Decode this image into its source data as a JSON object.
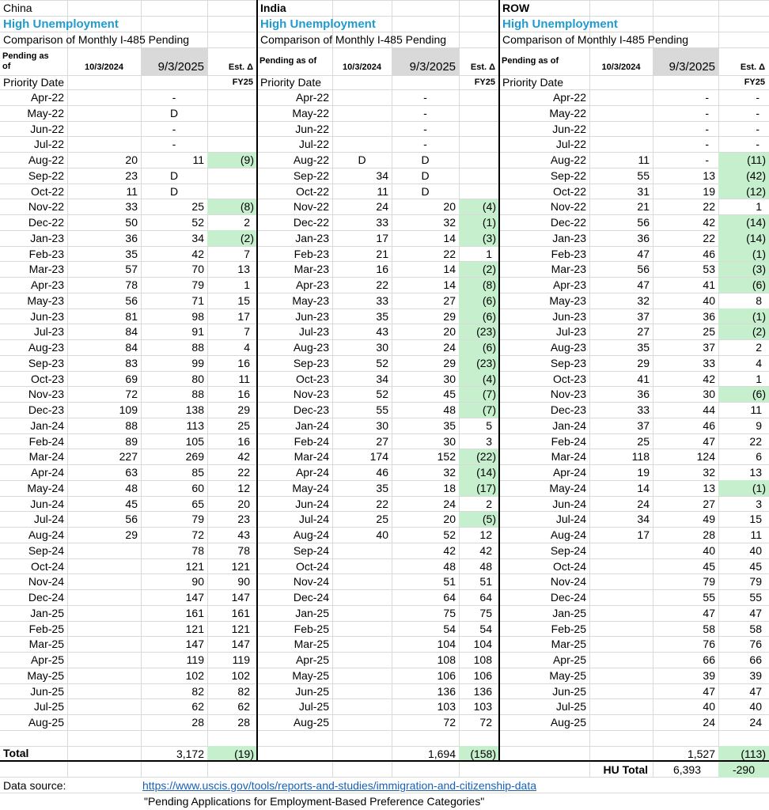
{
  "panels": [
    {
      "name": "China",
      "subtitle": "High Unemployment",
      "description": "Comparison of Monthly I-485 Pending",
      "columns": [
        "Pending as of",
        "10/3/2024",
        "9/3/2025",
        "Est. Δ"
      ],
      "row_header": "Priority Date",
      "fy": "FY25",
      "rows": [
        [
          "Apr-22",
          null,
          "-",
          null
        ],
        [
          "May-22",
          null,
          "D",
          null
        ],
        [
          "Jun-22",
          null,
          "-",
          null
        ],
        [
          "Jul-22",
          null,
          "-",
          null
        ],
        [
          "Aug-22",
          "20",
          "11",
          "(9)"
        ],
        [
          "Sep-22",
          "23",
          "D",
          null
        ],
        [
          "Oct-22",
          "11",
          "D",
          null
        ],
        [
          "Nov-22",
          "33",
          "25",
          "(8)"
        ],
        [
          "Dec-22",
          "50",
          "52",
          "2"
        ],
        [
          "Jan-23",
          "36",
          "34",
          "(2)"
        ],
        [
          "Feb-23",
          "35",
          "42",
          "7"
        ],
        [
          "Mar-23",
          "57",
          "70",
          "13"
        ],
        [
          "Apr-23",
          "78",
          "79",
          "1"
        ],
        [
          "May-23",
          "56",
          "71",
          "15"
        ],
        [
          "Jun-23",
          "81",
          "98",
          "17"
        ],
        [
          "Jul-23",
          "84",
          "91",
          "7"
        ],
        [
          "Aug-23",
          "84",
          "88",
          "4"
        ],
        [
          "Sep-23",
          "83",
          "99",
          "16"
        ],
        [
          "Oct-23",
          "69",
          "80",
          "11"
        ],
        [
          "Nov-23",
          "72",
          "88",
          "16"
        ],
        [
          "Dec-23",
          "109",
          "138",
          "29"
        ],
        [
          "Jan-24",
          "88",
          "113",
          "25"
        ],
        [
          "Feb-24",
          "89",
          "105",
          "16"
        ],
        [
          "Mar-24",
          "227",
          "269",
          "42"
        ],
        [
          "Apr-24",
          "63",
          "85",
          "22"
        ],
        [
          "May-24",
          "48",
          "60",
          "12"
        ],
        [
          "Jun-24",
          "45",
          "65",
          "20"
        ],
        [
          "Jul-24",
          "56",
          "79",
          "23"
        ],
        [
          "Aug-24",
          "29",
          "72",
          "43"
        ],
        [
          "Sep-24",
          null,
          "78",
          "78"
        ],
        [
          "Oct-24",
          null,
          "121",
          "121"
        ],
        [
          "Nov-24",
          null,
          "90",
          "90"
        ],
        [
          "Dec-24",
          null,
          "147",
          "147"
        ],
        [
          "Jan-25",
          null,
          "161",
          "161"
        ],
        [
          "Feb-25",
          null,
          "121",
          "121"
        ],
        [
          "Mar-25",
          null,
          "147",
          "147"
        ],
        [
          "Apr-25",
          null,
          "119",
          "119"
        ],
        [
          "May-25",
          null,
          "102",
          "102"
        ],
        [
          "Jun-25",
          null,
          "82",
          "82"
        ],
        [
          "Jul-25",
          null,
          "62",
          "62"
        ],
        [
          "Aug-25",
          null,
          "28",
          "28"
        ]
      ],
      "total": {
        "label": "Total",
        "pending": "3,172",
        "change": "(19)"
      }
    },
    {
      "name": "India",
      "subtitle": "High Unemployment",
      "description": "Comparison of Monthly I-485 Pending",
      "columns": [
        "Pending as of",
        "10/3/2024",
        "9/3/2025",
        "Est. Δ"
      ],
      "row_header": "Priority Date",
      "fy": "FY25",
      "rows": [
        [
          "Apr-22",
          null,
          "-",
          null
        ],
        [
          "May-22",
          null,
          "-",
          null
        ],
        [
          "Jun-22",
          null,
          "-",
          null
        ],
        [
          "Jul-22",
          null,
          "-",
          null
        ],
        [
          "Aug-22",
          "D",
          "D",
          null
        ],
        [
          "Sep-22",
          "34",
          "D",
          null
        ],
        [
          "Oct-22",
          "11",
          "D",
          null
        ],
        [
          "Nov-22",
          "24",
          "20",
          "(4)"
        ],
        [
          "Dec-22",
          "33",
          "32",
          "(1)"
        ],
        [
          "Jan-23",
          "17",
          "14",
          "(3)"
        ],
        [
          "Feb-23",
          "21",
          "22",
          "1"
        ],
        [
          "Mar-23",
          "16",
          "14",
          "(2)"
        ],
        [
          "Apr-23",
          "22",
          "14",
          "(8)"
        ],
        [
          "May-23",
          "33",
          "27",
          "(6)"
        ],
        [
          "Jun-23",
          "35",
          "29",
          "(6)"
        ],
        [
          "Jul-23",
          "43",
          "20",
          "(23)"
        ],
        [
          "Aug-23",
          "30",
          "24",
          "(6)"
        ],
        [
          "Sep-23",
          "52",
          "29",
          "(23)"
        ],
        [
          "Oct-23",
          "34",
          "30",
          "(4)"
        ],
        [
          "Nov-23",
          "52",
          "45",
          "(7)"
        ],
        [
          "Dec-23",
          "55",
          "48",
          "(7)"
        ],
        [
          "Jan-24",
          "30",
          "35",
          "5"
        ],
        [
          "Feb-24",
          "27",
          "30",
          "3"
        ],
        [
          "Mar-24",
          "174",
          "152",
          "(22)"
        ],
        [
          "Apr-24",
          "46",
          "32",
          "(14)"
        ],
        [
          "May-24",
          "35",
          "18",
          "(17)"
        ],
        [
          "Jun-24",
          "22",
          "24",
          "2"
        ],
        [
          "Jul-24",
          "25",
          "20",
          "(5)"
        ],
        [
          "Aug-24",
          "40",
          "52",
          "12"
        ],
        [
          "Sep-24",
          null,
          "42",
          "42"
        ],
        [
          "Oct-24",
          null,
          "48",
          "48"
        ],
        [
          "Nov-24",
          null,
          "51",
          "51"
        ],
        [
          "Dec-24",
          null,
          "64",
          "64"
        ],
        [
          "Jan-25",
          null,
          "75",
          "75"
        ],
        [
          "Feb-25",
          null,
          "54",
          "54"
        ],
        [
          "Mar-25",
          null,
          "104",
          "104"
        ],
        [
          "Apr-25",
          null,
          "108",
          "108"
        ],
        [
          "May-25",
          null,
          "106",
          "106"
        ],
        [
          "Jun-25",
          null,
          "136",
          "136"
        ],
        [
          "Jul-25",
          null,
          "103",
          "103"
        ],
        [
          "Aug-25",
          null,
          "72",
          "72"
        ]
      ],
      "total": {
        "pending": "1,694",
        "change": "(158)"
      }
    },
    {
      "name": "ROW",
      "subtitle": "High Unemployment",
      "description": "Comparison of Monthly I-485 Pending",
      "columns": [
        "Pending as of",
        "10/3/2024",
        "9/3/2025",
        "Est. Δ"
      ],
      "row_header": "Priority Date",
      "fy": "FY25",
      "rows": [
        [
          "Apr-22",
          null,
          "-",
          "-"
        ],
        [
          "May-22",
          null,
          "-",
          "-"
        ],
        [
          "Jun-22",
          null,
          "-",
          "-"
        ],
        [
          "Jul-22",
          null,
          "-",
          "-"
        ],
        [
          "Aug-22",
          "11",
          "-",
          "(11)"
        ],
        [
          "Sep-22",
          "55",
          "13",
          "(42)"
        ],
        [
          "Oct-22",
          "31",
          "19",
          "(12)"
        ],
        [
          "Nov-22",
          "21",
          "22",
          "1"
        ],
        [
          "Dec-22",
          "56",
          "42",
          "(14)"
        ],
        [
          "Jan-23",
          "36",
          "22",
          "(14)"
        ],
        [
          "Feb-23",
          "47",
          "46",
          "(1)"
        ],
        [
          "Mar-23",
          "56",
          "53",
          "(3)"
        ],
        [
          "Apr-23",
          "47",
          "41",
          "(6)"
        ],
        [
          "May-23",
          "32",
          "40",
          "8"
        ],
        [
          "Jun-23",
          "37",
          "36",
          "(1)"
        ],
        [
          "Jul-23",
          "27",
          "25",
          "(2)"
        ],
        [
          "Aug-23",
          "35",
          "37",
          "2"
        ],
        [
          "Sep-23",
          "29",
          "33",
          "4"
        ],
        [
          "Oct-23",
          "41",
          "42",
          "1"
        ],
        [
          "Nov-23",
          "36",
          "30",
          "(6)"
        ],
        [
          "Dec-23",
          "33",
          "44",
          "11"
        ],
        [
          "Jan-24",
          "37",
          "46",
          "9"
        ],
        [
          "Feb-24",
          "25",
          "47",
          "22"
        ],
        [
          "Mar-24",
          "118",
          "124",
          "6"
        ],
        [
          "Apr-24",
          "19",
          "32",
          "13"
        ],
        [
          "May-24",
          "14",
          "13",
          "(1)"
        ],
        [
          "Jun-24",
          "24",
          "27",
          "3"
        ],
        [
          "Jul-24",
          "34",
          "49",
          "15"
        ],
        [
          "Aug-24",
          "17",
          "28",
          "11"
        ],
        [
          "Sep-24",
          null,
          "40",
          "40"
        ],
        [
          "Oct-24",
          null,
          "45",
          "45"
        ],
        [
          "Nov-24",
          null,
          "79",
          "79"
        ],
        [
          "Dec-24",
          null,
          "55",
          "55"
        ],
        [
          "Jan-25",
          null,
          "47",
          "47"
        ],
        [
          "Feb-25",
          null,
          "58",
          "58"
        ],
        [
          "Mar-25",
          null,
          "76",
          "76"
        ],
        [
          "Apr-25",
          null,
          "66",
          "66"
        ],
        [
          "May-25",
          null,
          "39",
          "39"
        ],
        [
          "Jun-25",
          null,
          "47",
          "47"
        ],
        [
          "Jul-25",
          null,
          "40",
          "40"
        ],
        [
          "Aug-25",
          null,
          "24",
          "24"
        ]
      ],
      "total": {
        "pending": "1,527",
        "change": "(113)"
      }
    }
  ],
  "hu_total": {
    "label": "HU Total",
    "pending": "6,393",
    "change": "-290"
  },
  "source": {
    "label": "Data source:",
    "url": "https://www.uscis.gov/tools/reports-and-studies/immigration-and-citizenship-data",
    "title": "\"Pending Applications for Employment-Based Preference Categories\""
  }
}
